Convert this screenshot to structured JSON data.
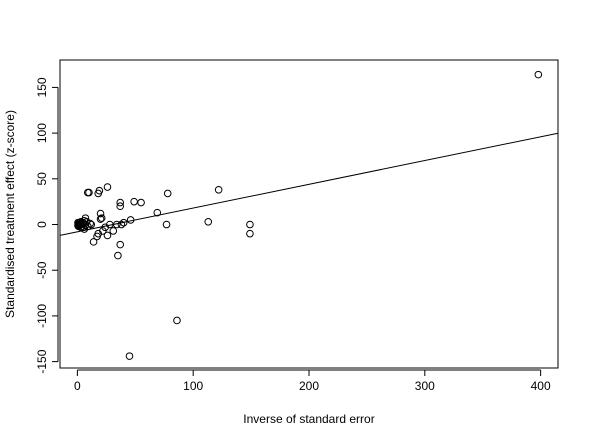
{
  "chart_data": {
    "type": "scatter",
    "xlabel": "Inverse of standard error",
    "ylabel": "Standardised treatment effect (z-score)",
    "xlim": [
      -15,
      415
    ],
    "ylim": [
      -157,
      180
    ],
    "xticks": [
      0,
      100,
      200,
      300,
      400
    ],
    "yticks": [
      -150,
      -100,
      -50,
      0,
      50,
      100,
      150
    ],
    "xtick_labels": [
      "0",
      "100",
      "200",
      "300",
      "400"
    ],
    "ytick_labels": [
      "-150",
      "-100",
      "-50",
      "0",
      "50",
      "100",
      "150"
    ],
    "grid": false,
    "legend": "none",
    "regression_line": {
      "intercept": -8,
      "slope": 0.26
    },
    "points": [
      {
        "x": 398,
        "y": 164
      },
      {
        "x": 122,
        "y": 38
      },
      {
        "x": 149,
        "y": 0
      },
      {
        "x": 149,
        "y": -10
      },
      {
        "x": 113,
        "y": 3
      },
      {
        "x": 86,
        "y": -105
      },
      {
        "x": 45,
        "y": -144
      },
      {
        "x": 78,
        "y": 34
      },
      {
        "x": 77,
        "y": 0
      },
      {
        "x": 69,
        "y": 13
      },
      {
        "x": 55,
        "y": 24
      },
      {
        "x": 49,
        "y": 25
      },
      {
        "x": 46,
        "y": 5
      },
      {
        "x": 40,
        "y": 2
      },
      {
        "x": 38,
        "y": 0
      },
      {
        "x": 37,
        "y": 24
      },
      {
        "x": 37,
        "y": 20
      },
      {
        "x": 37,
        "y": -22
      },
      {
        "x": 35,
        "y": -34
      },
      {
        "x": 34,
        "y": 0
      },
      {
        "x": 31,
        "y": -7
      },
      {
        "x": 28,
        "y": 0
      },
      {
        "x": 26,
        "y": 41
      },
      {
        "x": 26,
        "y": -12
      },
      {
        "x": 24,
        "y": -3
      },
      {
        "x": 22,
        "y": -7
      },
      {
        "x": 21,
        "y": 7
      },
      {
        "x": 20,
        "y": 12
      },
      {
        "x": 20,
        "y": 6
      },
      {
        "x": 19,
        "y": 37
      },
      {
        "x": 18,
        "y": 34
      },
      {
        "x": 18,
        "y": -10
      },
      {
        "x": 17,
        "y": -13
      },
      {
        "x": 14,
        "y": -19
      },
      {
        "x": 12,
        "y": 0
      },
      {
        "x": 10,
        "y": 35
      },
      {
        "x": 9,
        "y": 35
      },
      {
        "x": 11,
        "y": 1
      },
      {
        "x": 9,
        "y": -2
      },
      {
        "x": 8,
        "y": 3
      },
      {
        "x": 7,
        "y": 7
      },
      {
        "x": 7,
        "y": -1
      },
      {
        "x": 6,
        "y": 4
      },
      {
        "x": 6,
        "y": -5
      },
      {
        "x": 5,
        "y": 2
      },
      {
        "x": 5,
        "y": -3
      },
      {
        "x": 4,
        "y": 1
      },
      {
        "x": 4,
        "y": -2
      },
      {
        "x": 3,
        "y": 3
      },
      {
        "x": 3,
        "y": 0
      },
      {
        "x": 3,
        "y": -3
      },
      {
        "x": 2,
        "y": 2
      },
      {
        "x": 2,
        "y": -1
      },
      {
        "x": 2,
        "y": 0
      },
      {
        "x": 1,
        "y": 1
      },
      {
        "x": 1,
        "y": -2
      },
      {
        "x": 1,
        "y": 0
      },
      {
        "x": 0.5,
        "y": 2
      },
      {
        "x": 0.5,
        "y": -1
      }
    ]
  }
}
